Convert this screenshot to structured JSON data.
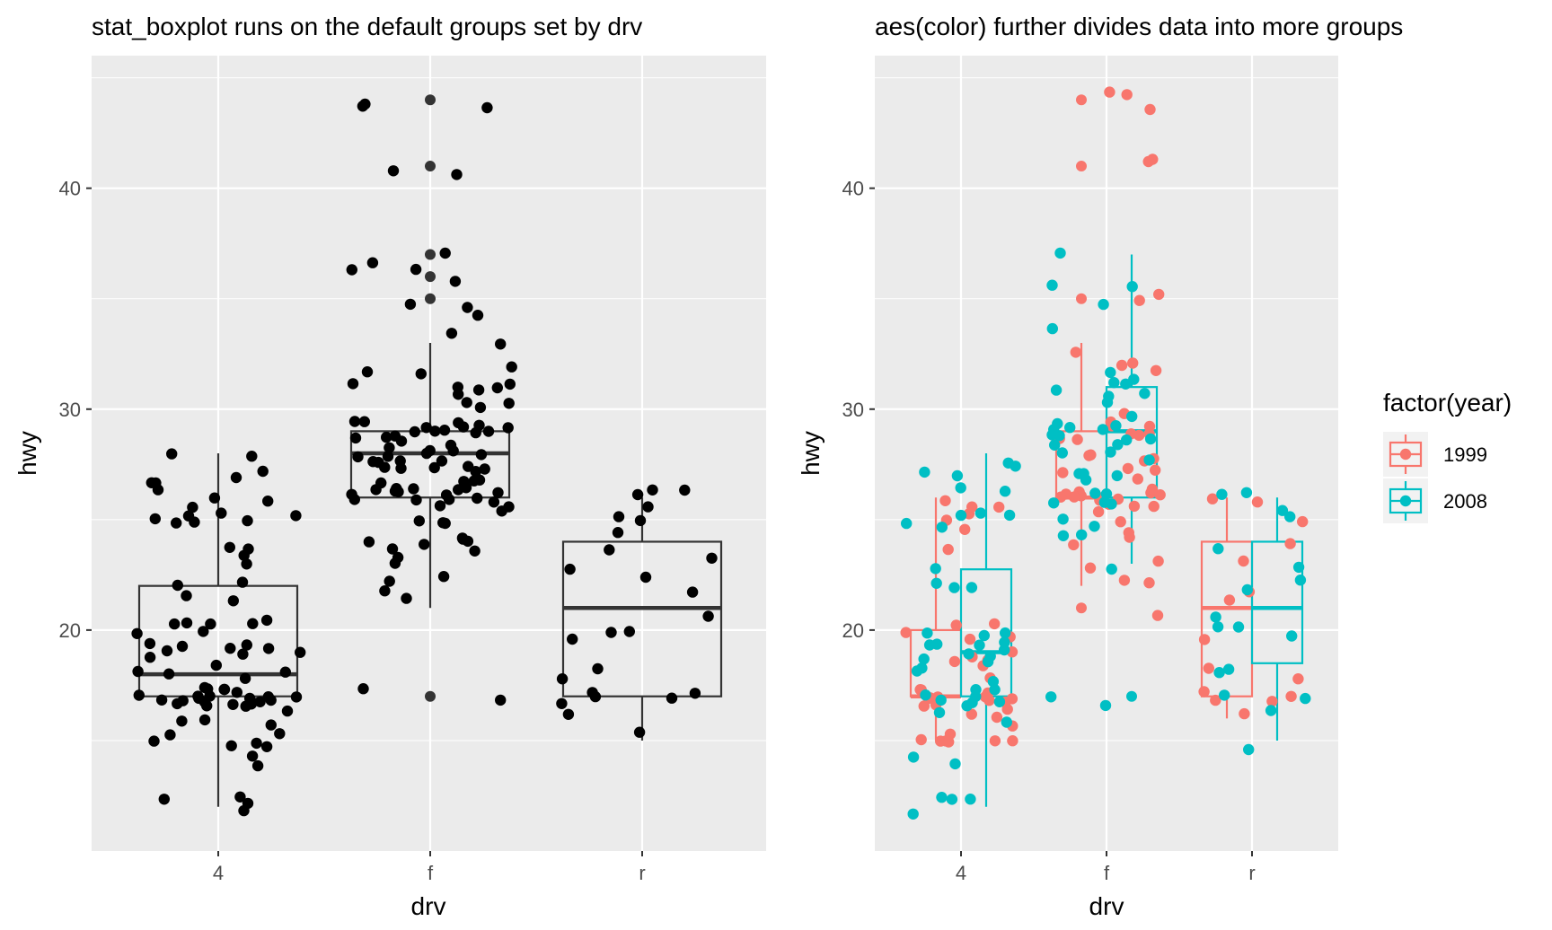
{
  "theme": {
    "panel_bg": "#ebebeb",
    "grid_major": "#ffffff",
    "grid_minor": "#f5f5f5",
    "tick_color": "#333333",
    "point_black": "#000000",
    "box_color": "#333333",
    "color_1999": "#f8766d",
    "color_2008": "#00bfc4"
  },
  "legend": {
    "title": "factor(year)",
    "items": [
      {
        "label": "1999",
        "color": "#f8766d"
      },
      {
        "label": "2008",
        "color": "#00bfc4"
      }
    ]
  },
  "chart_data": [
    {
      "type": "boxplot",
      "title": "stat_boxplot runs on the default groups set by drv",
      "xlabel": "drv",
      "ylabel": "hwy",
      "categories": [
        "4",
        "f",
        "r"
      ],
      "ylim": [
        10,
        46
      ],
      "yticks": [
        20,
        30,
        40
      ],
      "grid": true,
      "boxes": [
        {
          "category": "4",
          "lower_whisker": 12,
          "q1": 17,
          "median": 18,
          "q3": 22,
          "upper_whisker": 28,
          "outliers": []
        },
        {
          "category": "f",
          "lower_whisker": 21,
          "q1": 26,
          "median": 28,
          "q3": 29,
          "upper_whisker": 33,
          "outliers": [
            17,
            35,
            36,
            37,
            41,
            44
          ]
        },
        {
          "category": "r",
          "lower_whisker": 15,
          "q1": 17,
          "median": 21,
          "q3": 24,
          "upper_whisker": 26,
          "outliers": []
        }
      ],
      "points": [
        {
          "x": "4",
          "y": [
            12,
            12,
            12,
            12,
            14,
            14,
            15,
            15,
            15,
            15,
            15,
            15,
            16,
            16,
            16,
            16,
            17,
            17,
            17,
            17,
            17,
            17,
            17,
            17,
            17,
            17,
            17,
            17,
            17,
            17,
            17,
            17,
            17,
            17,
            17,
            17,
            17,
            17,
            17,
            18,
            18,
            18,
            18,
            18,
            19,
            19,
            19,
            19,
            19,
            19,
            19,
            19,
            19,
            20,
            20,
            20,
            20,
            20,
            20,
            20,
            21,
            22,
            22,
            22,
            23,
            23,
            24,
            24,
            25,
            25,
            25,
            25,
            25,
            25,
            25,
            26,
            26,
            26,
            26,
            27,
            27,
            27,
            27,
            28,
            28
          ]
        },
        {
          "x": "f",
          "y": [
            17,
            17,
            21,
            22,
            22,
            22,
            23,
            23,
            24,
            24,
            24,
            24,
            24,
            24,
            24,
            25,
            25,
            25,
            25,
            26,
            26,
            26,
            26,
            26,
            26,
            26,
            26,
            26,
            26,
            26,
            26,
            26,
            26,
            26,
            26,
            26,
            27,
            27,
            27,
            27,
            27,
            27,
            27,
            27,
            27,
            27,
            28,
            28,
            28,
            28,
            28,
            28,
            28,
            28,
            28,
            28,
            28,
            28,
            29,
            29,
            29,
            29,
            29,
            29,
            29,
            29,
            29,
            29,
            29,
            29,
            29,
            29,
            29,
            29,
            30,
            30,
            30,
            31,
            31,
            31,
            31,
            31,
            31,
            32,
            32,
            32,
            33,
            33,
            34,
            35,
            35,
            36,
            36,
            36,
            37,
            37,
            41,
            41,
            44,
            44,
            44
          ]
        },
        {
          "x": "r",
          "y": [
            15,
            16,
            17,
            17,
            17,
            17,
            17,
            18,
            18,
            20,
            20,
            20,
            21,
            22,
            22,
            23,
            23,
            24,
            24,
            25,
            25,
            26,
            26,
            26,
            26
          ]
        }
      ]
    },
    {
      "type": "boxplot",
      "title": "aes(color) further divides data into more groups",
      "xlabel": "drv",
      "ylabel": "hwy",
      "categories": [
        "4",
        "f",
        "r"
      ],
      "ylim": [
        10,
        46
      ],
      "yticks": [
        20,
        30,
        40
      ],
      "grid": true,
      "legend_position": "right",
      "boxes": [
        {
          "category": "4",
          "series": "1999",
          "lower_whisker": 15,
          "q1": 17,
          "median": 17,
          "q3": 20,
          "upper_whisker": 26,
          "outliers": []
        },
        {
          "category": "4",
          "series": "2008",
          "lower_whisker": 12,
          "q1": 17,
          "median": 19,
          "q3": 22.75,
          "upper_whisker": 28,
          "outliers": []
        },
        {
          "category": "f",
          "series": "1999",
          "lower_whisker": 22,
          "q1": 26,
          "median": 26,
          "q3": 29,
          "upper_whisker": 33,
          "outliers": [
            21,
            35,
            41,
            44
          ]
        },
        {
          "category": "f",
          "series": "2008",
          "lower_whisker": 23,
          "q1": 26,
          "median": 29,
          "q3": 31,
          "upper_whisker": 37,
          "outliers": [
            17
          ]
        },
        {
          "category": "r",
          "series": "1999",
          "lower_whisker": 16,
          "q1": 17,
          "median": 21,
          "q3": 24,
          "upper_whisker": 26,
          "outliers": []
        },
        {
          "category": "r",
          "series": "2008",
          "lower_whisker": 15,
          "q1": 18.5,
          "median": 21,
          "q3": 24,
          "upper_whisker": 26,
          "outliers": []
        }
      ],
      "points": [
        {
          "x": "4",
          "series": "1999",
          "y": [
            15,
            15,
            15,
            15,
            15,
            15,
            15,
            16,
            16,
            16,
            16,
            17,
            17,
            17,
            17,
            17,
            17,
            17,
            17,
            17,
            17,
            17,
            17,
            18,
            18,
            19,
            19,
            19,
            19,
            20,
            20,
            20,
            20,
            20,
            24,
            25,
            25,
            25,
            26,
            26,
            26
          ]
        },
        {
          "x": "4",
          "series": "2008",
          "y": [
            12,
            12,
            12,
            12,
            14,
            14,
            16,
            16,
            17,
            17,
            17,
            17,
            17,
            17,
            17,
            17,
            18,
            18,
            18,
            19,
            19,
            19,
            19,
            19,
            19,
            19,
            19,
            19,
            20,
            20,
            20,
            22,
            22,
            22,
            23,
            25,
            25,
            25,
            25,
            25,
            26,
            26,
            27,
            27,
            27,
            28
          ]
        },
        {
          "x": "f",
          "series": "1999",
          "y": [
            21,
            22,
            22,
            23,
            23,
            24,
            24,
            24,
            25,
            25,
            26,
            26,
            26,
            26,
            26,
            26,
            26,
            26,
            26,
            26,
            26,
            26,
            26,
            26,
            27,
            27,
            27,
            27,
            28,
            28,
            28,
            28,
            29,
            29,
            29,
            29,
            29,
            29,
            29,
            29,
            30,
            32,
            32,
            32,
            33,
            35,
            35,
            41,
            41,
            44,
            44,
            44
          ]
        },
        {
          "x": "f",
          "series": "2008",
          "y": [
            17,
            17,
            23,
            24,
            24,
            25,
            25,
            26,
            26,
            26,
            26,
            26,
            27,
            27,
            27,
            27,
            28,
            28,
            28,
            28,
            28,
            29,
            29,
            29,
            29,
            29,
            29,
            29,
            29,
            29,
            30,
            30,
            31,
            31,
            31,
            31,
            31,
            31,
            32,
            34,
            35,
            36,
            36,
            37
          ]
        },
        {
          "x": "r",
          "series": "1999",
          "y": [
            16,
            17,
            17,
            17,
            17,
            18,
            18,
            20,
            21,
            22,
            23,
            24,
            25,
            26,
            26
          ]
        },
        {
          "x": "r",
          "series": "2008",
          "y": [
            15,
            16,
            17,
            17,
            18,
            18,
            20,
            20,
            20,
            21,
            22,
            22,
            23,
            24,
            25,
            25,
            26,
            26
          ]
        }
      ]
    }
  ]
}
